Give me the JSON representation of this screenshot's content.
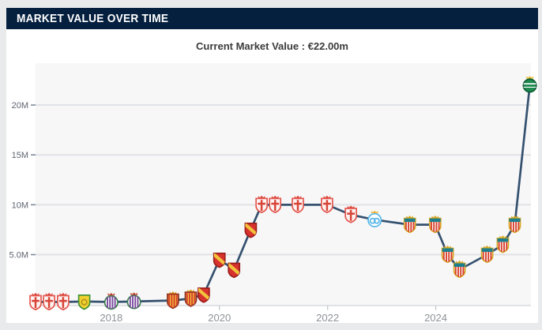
{
  "header": {
    "title": "MARKET VALUE OVER TIME"
  },
  "summary": {
    "label": "Current Market Value :",
    "value": "€22.00m"
  },
  "colors": {
    "page_bg": "#e9eaec",
    "card_bg": "#ffffff",
    "header_bg": "#05203f",
    "header_text": "#ffffff",
    "subtitle_text": "#3b3b3b",
    "plot_bg": "#f7f7f8",
    "gridline": "#e1e2e5",
    "axis_line": "#d8dadd",
    "y_tick": "#7e8a99",
    "x_tick": "#c8ccd1",
    "line": "#35516f"
  },
  "chart_data": {
    "type": "line",
    "title": "Market value over time",
    "xlabel": "",
    "ylabel": "",
    "grid": true,
    "legend": false,
    "xlim": [
      2016.6,
      2025.76
    ],
    "ylim": [
      -0.105,
      24.2
    ],
    "x_ticks": [
      {
        "value": 2018,
        "label": "2018"
      },
      {
        "value": 2020,
        "label": "2020"
      },
      {
        "value": 2022,
        "label": "2022"
      },
      {
        "value": 2024,
        "label": "2024"
      }
    ],
    "y_ticks": [
      {
        "value": 20,
        "label": "20M"
      },
      {
        "value": 15,
        "label": "15M"
      },
      {
        "value": 10,
        "label": "10M"
      },
      {
        "value": 5,
        "label": "5.0M"
      }
    ],
    "unit": "€ million",
    "points": [
      {
        "t": 2016.6,
        "v": 0.25,
        "club": "granada-cf"
      },
      {
        "t": 2016.85,
        "v": 0.25,
        "club": "granada-cf"
      },
      {
        "t": 2017.11,
        "v": 0.25,
        "club": "granada-cf"
      },
      {
        "t": 2017.5,
        "v": 0.3,
        "club": "leones-fc"
      },
      {
        "t": 2018.0,
        "v": 0.25,
        "club": "real-valladolid"
      },
      {
        "t": 2018.42,
        "v": 0.3,
        "club": "real-valladolid"
      },
      {
        "t": 2019.14,
        "v": 0.4,
        "club": "gimnastic-tarragona"
      },
      {
        "t": 2019.47,
        "v": 0.6,
        "club": "gimnastic-tarragona"
      },
      {
        "t": 2019.71,
        "v": 1.0,
        "club": "real-zaragoza"
      },
      {
        "t": 2020.0,
        "v": 4.5,
        "club": "real-zaragoza"
      },
      {
        "t": 2020.27,
        "v": 3.5,
        "club": "real-zaragoza"
      },
      {
        "t": 2020.58,
        "v": 7.5,
        "club": "real-zaragoza"
      },
      {
        "t": 2020.78,
        "v": 10.0,
        "club": "granada-cf"
      },
      {
        "t": 2021.03,
        "v": 10.0,
        "club": "granada-cf"
      },
      {
        "t": 2021.45,
        "v": 10.0,
        "club": "granada-cf"
      },
      {
        "t": 2021.99,
        "v": 10.0,
        "club": "granada-cf"
      },
      {
        "t": 2022.43,
        "v": 9.0,
        "club": "granada-cf"
      },
      {
        "t": 2022.87,
        "v": 8.5,
        "club": "olympique-marseille"
      },
      {
        "t": 2023.52,
        "v": 8.0,
        "club": "ud-almeria"
      },
      {
        "t": 2023.99,
        "v": 8.0,
        "club": "ud-almeria"
      },
      {
        "t": 2024.22,
        "v": 5.0,
        "club": "ud-almeria"
      },
      {
        "t": 2024.44,
        "v": 3.5,
        "club": "ud-almeria"
      },
      {
        "t": 2024.95,
        "v": 5.0,
        "club": "ud-almeria"
      },
      {
        "t": 2025.24,
        "v": 6.0,
        "club": "ud-almeria"
      },
      {
        "t": 2025.46,
        "v": 8.0,
        "club": "ud-almeria"
      },
      {
        "t": 2025.74,
        "v": 22.0,
        "club": "sporting-cp"
      }
    ],
    "clubs": {
      "granada-cf": {
        "shape": "shield",
        "fill": "#fdf4f3",
        "stroke": "#e4574f",
        "detail": "cross",
        "detail_color": "#d94438",
        "crown": "#d94438"
      },
      "leones-fc": {
        "shape": "shield",
        "fill": "#f0d02e",
        "stroke": "#44953a",
        "detail": "dot",
        "detail_color": "#ad8f1c",
        "crown": null
      },
      "real-valladolid": {
        "shape": "circle",
        "fill": "#ffffff",
        "stroke": "#3b7d4f",
        "detail": "stripes",
        "detail_color": "#7a4a9d",
        "crown": "#c2452f"
      },
      "gimnastic-tarragona": {
        "shape": "shield",
        "fill": "#f2c33c",
        "stroke": "#8a2f23",
        "detail": "stripes",
        "detail_color": "#d6402e",
        "crown": "#d9a31d"
      },
      "real-zaragoza": {
        "shape": "shield",
        "fill": "#d8322e",
        "stroke": "#9c1f1c",
        "detail": "band",
        "detail_color": "#f2c33c",
        "crown": null
      },
      "olympique-marseille": {
        "shape": "circle",
        "fill": "#ffffff",
        "stroke": "#57b6e8",
        "detail": "om",
        "detail_color": "#57b6e8",
        "crown": "#f2b632"
      },
      "ud-almeria": {
        "shape": "shield",
        "fill": "#ffffff",
        "stroke": "#d9a823",
        "detail": "stripes",
        "detail_color": "#d6402e",
        "chief": "#1c7f8e",
        "crown": "#d9a823"
      },
      "sporting-cp": {
        "shape": "circle",
        "fill": "#1d8a50",
        "stroke": "#0f5c33",
        "detail": "hline",
        "detail_color": "#ffffff",
        "crown": "#e8b72e"
      }
    }
  }
}
